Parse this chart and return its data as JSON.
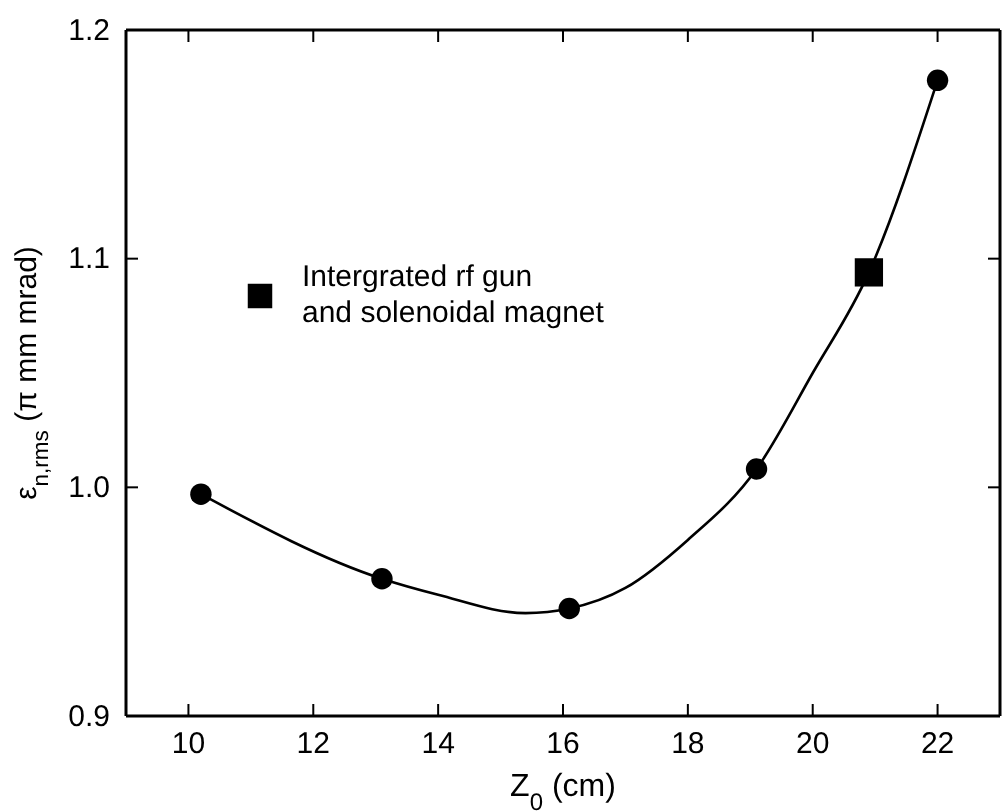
{
  "chart_data": {
    "type": "scatter",
    "xlabel": "Z$_{0}$ (cm)",
    "ylabel": "ε$_{n,rms}$ (π mm mrad)",
    "xlim": [
      9,
      23
    ],
    "xticks": [
      10,
      12,
      14,
      16,
      18,
      20,
      22
    ],
    "ylim": [
      0.9,
      1.2
    ],
    "yticks": [
      0.9,
      {
        "value": 1,
        "label": "1.0"
      },
      1.1,
      1.2
    ],
    "grid": false,
    "legend": "top left",
    "series": [
      {
        "type": "line",
        "color": "#000000",
        "marker": "none",
        "line_style": "solid",
        "x": [
          10.2,
          13.1,
          14,
          15.4,
          16.1,
          17,
          18,
          19.1,
          20,
          20.9,
          22
        ],
        "values": [
          0.997,
          0.96,
          0.953,
          0.945,
          0.947,
          0.956,
          0.977,
          1.008,
          1.05,
          1.094,
          1.178
        ]
      },
      {
        "color": "#000000",
        "marker": "circle",
        "x": [
          10.2,
          13.1,
          16.1,
          19.1,
          22
        ],
        "values": [
          0.997,
          0.96,
          0.947,
          1.008,
          1.178
        ]
      },
      {
        "name": "Intergrated rf gun\nand solenoidal magnet",
        "color": "#000000",
        "marker": "square",
        "x": [
          20.9
        ],
        "values": [
          1.094
        ]
      }
    ]
  }
}
